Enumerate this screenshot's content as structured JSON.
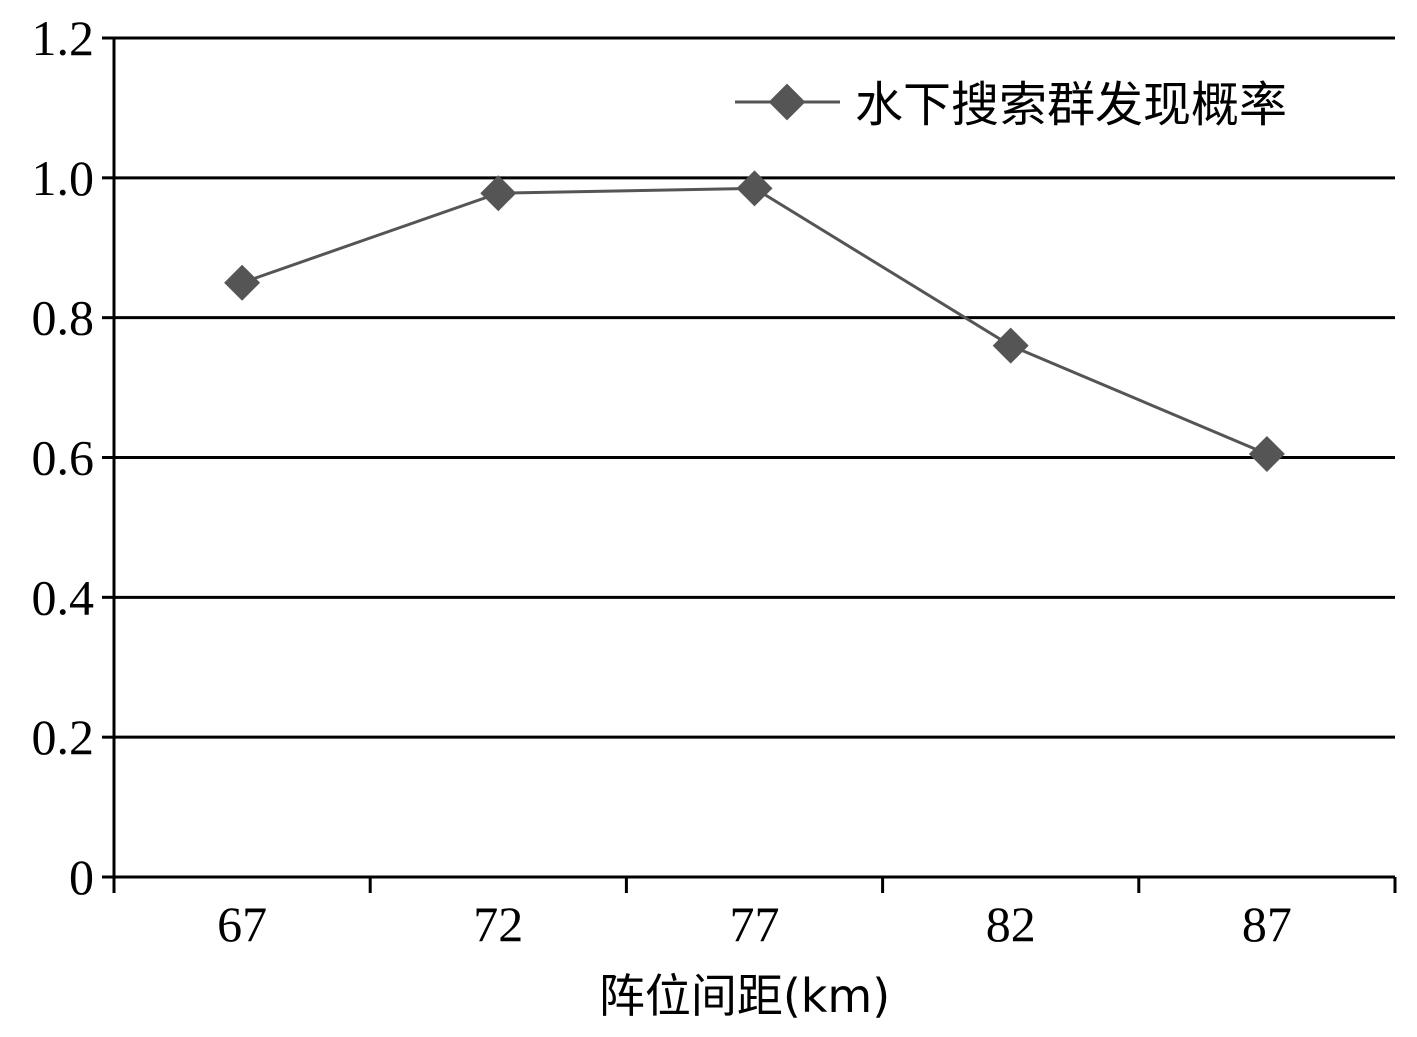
{
  "chart_data": {
    "type": "line",
    "title": "",
    "xlabel": "阵位间距(km)",
    "ylabel": "",
    "categories": [
      "67",
      "72",
      "77",
      "82",
      "87"
    ],
    "series": [
      {
        "name": "水下搜索群发现概率",
        "values": [
          0.85,
          0.978,
          0.985,
          0.76,
          0.605
        ],
        "color": "#555555",
        "marker": "diamond"
      }
    ],
    "ylim": [
      0,
      1.2
    ],
    "yticks": [
      {
        "value": 0,
        "label": "0"
      },
      {
        "value": 0.2,
        "label": "0.2"
      },
      {
        "value": 0.4,
        "label": "0.4"
      },
      {
        "value": 0.6,
        "label": "0.6"
      },
      {
        "value": 0.8,
        "label": "0.8"
      },
      {
        "value": 1.0,
        "label": "1.0"
      },
      {
        "value": 1.2,
        "label": "1.2"
      }
    ],
    "grid": true,
    "legend": "top-right"
  }
}
